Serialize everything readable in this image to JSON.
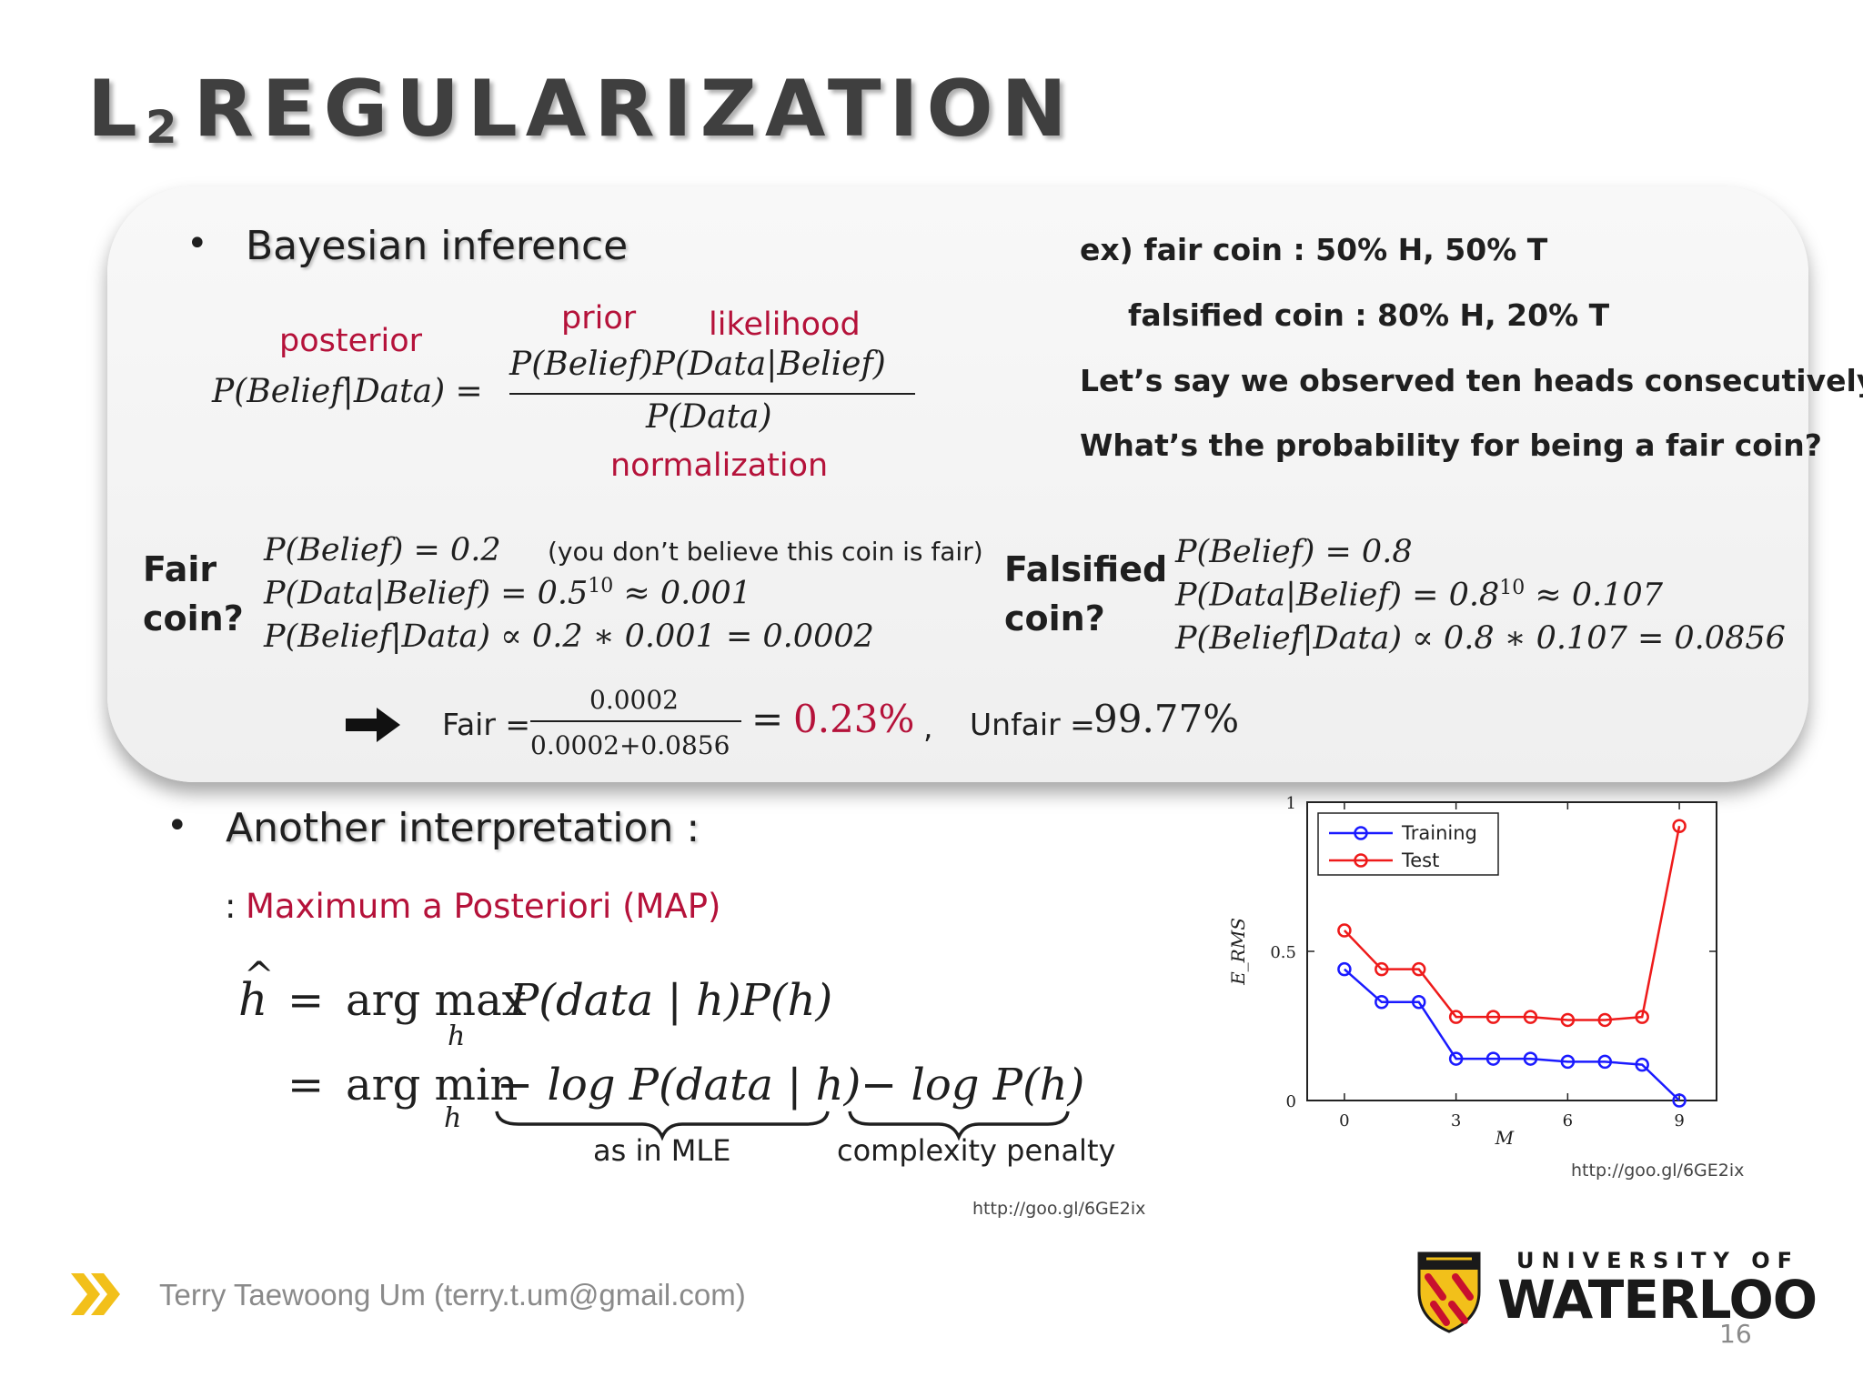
{
  "title": {
    "main": "L",
    "sub": "2",
    "rest": "REGULARIZATION"
  },
  "bayes": {
    "heading": "Bayesian inference",
    "labels": {
      "posterior": "posterior",
      "prior": "prior",
      "likelihood": "likelihood",
      "normalization": "normalization"
    },
    "formula": {
      "lhs": "P(Belief|Data) =",
      "numerator": "P(Belief)P(Data|Belief)",
      "denominator": "P(Data)"
    }
  },
  "example": {
    "line1": "ex) fair coin : 50% H, 50% T",
    "line2": "falsified coin : 80% H, 20% T",
    "line3": "Let’s say we observed ten heads consecutively.",
    "line4": "What’s the probability for being a fair coin?"
  },
  "fair": {
    "label1": "Fair",
    "label2": "coin?",
    "eq1": "P(Belief) = 0.2",
    "note": "(you don’t believe this coin is fair)",
    "eq2_base": "P(Data|Belief) = 0.5",
    "eq2_exp": "10",
    "eq2_rest": "≈ 0.001",
    "eq3": "P(Belief|Data) ∝ 0.2 ∗ 0.001 = 0.0002"
  },
  "falsified": {
    "label1": "Falsified",
    "label2": "coin?",
    "eq1": "P(Belief) = 0.8",
    "eq2_base": "P(Data|Belief) = 0.8",
    "eq2_exp": "10",
    "eq2_rest": "≈ 0.107",
    "eq3": "P(Belief|Data) ∝ 0.8 ∗ 0.107 = 0.0856"
  },
  "result": {
    "fair_label": "Fair =",
    "numerator": "0.0002",
    "denominator": "0.0002+0.0856",
    "equals": "=",
    "fair_value": "0.23%",
    "comma": ",",
    "unfair_label": "Unfair =",
    "unfair_value": "99.77%"
  },
  "another": {
    "heading": "Another interpretation :",
    "colon": ":",
    "map": "Maximum a Posteriori (MAP)"
  },
  "map_formula": {
    "h_hat": "h",
    "eq": "=",
    "argmax": "arg max",
    "sub_h": "h",
    "expr1": "P(data | h)P(h)",
    "argmin": "arg min",
    "expr2a": "− log P(data | h)",
    "expr2b": "− log P(h)",
    "brace1_label": "as in MLE",
    "brace2_label": "complexity penalty",
    "source": "http://goo.gl/6GE2ix"
  },
  "chart_data": {
    "type": "line",
    "x": [
      0,
      1,
      2,
      3,
      4,
      5,
      6,
      7,
      8,
      9
    ],
    "series": [
      {
        "name": "Training",
        "color": "#1a1aff",
        "values": [
          0.44,
          0.33,
          0.33,
          0.14,
          0.14,
          0.14,
          0.13,
          0.13,
          0.12,
          0.0
        ]
      },
      {
        "name": "Test",
        "color": "#ee1a1a",
        "values": [
          0.57,
          0.44,
          0.44,
          0.28,
          0.28,
          0.28,
          0.27,
          0.27,
          0.28,
          0.92
        ]
      }
    ],
    "xlabel": "M",
    "ylabel": "E_RMS",
    "xticks": [
      "0",
      "3",
      "6",
      "9"
    ],
    "yticks": [
      "0",
      "0.5",
      "1"
    ],
    "xlim": [
      -1,
      10
    ],
    "ylim": [
      0,
      1
    ],
    "legend": "top-left",
    "source": "http://goo.gl/6GE2ix"
  },
  "footer": {
    "name": "Terry Taewoong Um (terry.t.um@gmail.com)",
    "uni_line1": "UNIVERSITY OF",
    "uni_line2": "WATERLOO",
    "page": "16"
  },
  "colors": {
    "accent_red": "#b5123a",
    "chevron": "#f2c01a",
    "title": "#3f3f3f"
  }
}
